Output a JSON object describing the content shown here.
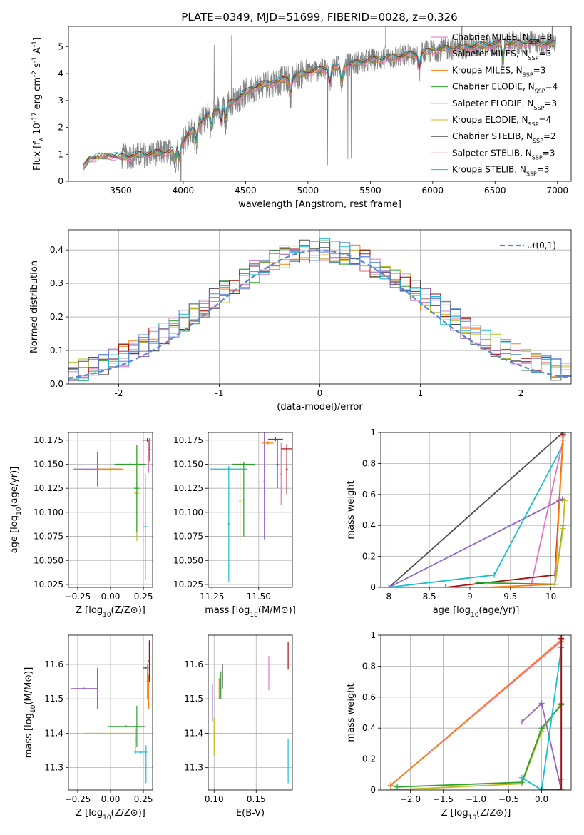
{
  "figure_title": "PLATE=0349, MJD=51699, FIBERID=0028, z=0.326",
  "model_colors": {
    "chabrier_miles": "#e377c2",
    "salpeter_miles": "#e377c2",
    "kroupa_miles": "#ff7f0e",
    "chabrier_elodie": "#2ca02c",
    "salpeter_elodie": "#9467bd",
    "kroupa_elodie": "#bcbd22",
    "chabrier_stelib": "#4d4d4d",
    "salpeter_stelib": "#a51010",
    "kroupa_stelib": "#17becf"
  },
  "chart_data": [
    {
      "id": "spectrum",
      "type": "line",
      "xlabel": "wavelength [Angstrom, rest frame]",
      "ylabel": "Flux [f_λ 10^-17 erg cm^-2 s^-1 A^-1]",
      "xlim": [
        3080,
        7110
      ],
      "ylim": [
        0,
        5.75
      ],
      "xticks": [
        3500,
        4000,
        4500,
        5000,
        5500,
        6000,
        6500,
        7000
      ],
      "yticks": [
        0,
        1,
        2,
        3,
        4,
        5
      ],
      "grid": false,
      "legend_position": "top-right",
      "data_color": "#808080",
      "continuum": {
        "x": [
          3200,
          3250,
          3400,
          3500,
          3600,
          3700,
          3800,
          3900,
          4000,
          4100,
          4200,
          4300,
          4400,
          4500,
          4600,
          4700,
          4800,
          4900,
          5000,
          5100,
          5200,
          5300,
          5400,
          5500,
          5600,
          5700,
          5800,
          5900,
          6000,
          6100,
          6200,
          6300,
          6400,
          6500,
          6600,
          6700,
          6800,
          6900,
          6990
        ],
        "y": [
          0.5,
          0.85,
          0.95,
          0.9,
          0.95,
          1.0,
          1.05,
          1.1,
          1.5,
          2.0,
          2.45,
          2.75,
          2.95,
          3.3,
          3.55,
          3.65,
          3.75,
          3.9,
          4.05,
          4.15,
          4.2,
          4.3,
          4.4,
          4.5,
          4.55,
          4.62,
          4.68,
          4.75,
          4.85,
          4.92,
          4.95,
          5.0,
          5.05,
          5.1,
          5.1,
          5.12,
          5.15,
          5.1,
          5.1
        ]
      },
      "absorption_lines": [
        3934,
        3969,
        4102,
        4227,
        4305,
        4341,
        4861,
        5175,
        5270,
        5893,
        6563
      ],
      "legend": [
        {
          "label": "Chabrier MILES, N",
          "sub": "SSP",
          "suffix": "=3",
          "color": "#e377c2"
        },
        {
          "label": "Salpeter MILES, N",
          "sub": "SSP",
          "suffix": "=3",
          "color": "#e377c2"
        },
        {
          "label": "Kroupa MILES, N",
          "sub": "SSP",
          "suffix": "=3",
          "color": "#ff7f0e"
        },
        {
          "label": "Chabrier ELODIE, N",
          "sub": "SSP",
          "suffix": "=4",
          "color": "#2ca02c"
        },
        {
          "label": "Salpeter ELODIE, N",
          "sub": "SSP",
          "suffix": "=3",
          "color": "#9467bd"
        },
        {
          "label": "Kroupa ELODIE, N",
          "sub": "SSP",
          "suffix": "=4",
          "color": "#bcbd22"
        },
        {
          "label": "Chabrier STELIB, N",
          "sub": "SSP",
          "suffix": "=2",
          "color": "#4d4d4d"
        },
        {
          "label": "Salpeter STELIB, N",
          "sub": "SSP",
          "suffix": "=3",
          "color": "#a51010"
        },
        {
          "label": "Kroupa STELIB, N",
          "sub": "SSP",
          "suffix": "=3",
          "color": "#17becf"
        }
      ]
    },
    {
      "id": "residuals",
      "type": "step-histogram",
      "xlabel": "(data-model)/error",
      "ylabel": "Normed distribution",
      "xlim": [
        -2.5,
        2.5
      ],
      "ylim": [
        0,
        0.46
      ],
      "xticks": [
        -2,
        -1,
        0,
        1,
        2
      ],
      "yticks": [
        0.0,
        0.1,
        0.2,
        0.3,
        0.4
      ],
      "grid": true,
      "legend_position": "top-right",
      "bin_width": 0.1,
      "gaussian": {
        "label": "𝒩(0,1)",
        "color": "#5b84d6",
        "style": "dashed"
      },
      "colors": [
        "#e377c2",
        "#ff7f0e",
        "#2ca02c",
        "#9467bd",
        "#bcbd22",
        "#4d4d4d",
        "#a51010",
        "#17becf",
        "#5b84d6"
      ]
    },
    {
      "id": "age-vs-Z",
      "type": "errorbar",
      "xlabel": "Z [log10(Z/Z⊙)]",
      "ylabel": "age  [log10(age/yr)]",
      "xlim": [
        -0.32,
        0.32
      ],
      "ylim": [
        10.022,
        10.183
      ],
      "xticks": [
        -0.25,
        0.0,
        0.25
      ],
      "xticklabels": [
        "−0.25",
        "0.00",
        "0.25"
      ],
      "yticks": [
        10.025,
        10.05,
        10.075,
        10.1,
        10.125,
        10.15,
        10.175
      ],
      "yticklabels": [
        "10.025",
        "10.050",
        "10.075",
        "10.100",
        "10.125",
        "10.150",
        "10.175"
      ],
      "grid": true,
      "points": [
        {
          "x": -0.1,
          "xerr": 0.18,
          "y": 10.145,
          "yerr": 0.018,
          "color": "#9467bd"
        },
        {
          "x": 0.0,
          "xerr": 0.1,
          "y": 10.145,
          "yerr": 0.002,
          "color": "#ff7f0e"
        },
        {
          "x": 0.0,
          "xerr": 0.2,
          "y": 10.144,
          "yerr": 0.002,
          "color": "#bcbd22"
        },
        {
          "x": 0.15,
          "xerr": 0.12,
          "y": 10.15,
          "yerr": 0.002,
          "color": "#2ca02c"
        },
        {
          "x": 0.2,
          "xerr": 0.02,
          "y": 10.12,
          "yerr": 0.05,
          "color": "#bcbd22"
        },
        {
          "x": 0.2,
          "xerr": 0.02,
          "y": 10.125,
          "yerr": 0.045,
          "color": "#2ca02c"
        },
        {
          "x": 0.265,
          "xerr": 0.02,
          "y": 10.085,
          "yerr": 0.055,
          "color": "#17becf"
        },
        {
          "x": 0.28,
          "xerr": 0.03,
          "y": 10.175,
          "yerr": 0.002,
          "color": "#4d4d4d"
        },
        {
          "x": 0.29,
          "xerr": 0.01,
          "y": 10.158,
          "yerr": 0.017,
          "color": "#e377c2"
        },
        {
          "x": 0.295,
          "xerr": 0.01,
          "y": 10.165,
          "yerr": 0.012,
          "color": "#ff7f0e"
        },
        {
          "x": 0.3,
          "xerr": 0.01,
          "y": 10.165,
          "yerr": 0.012,
          "color": "#a51010"
        }
      ]
    },
    {
      "id": "age-vs-mass",
      "type": "errorbar",
      "xlabel": "mass [log10(M/M⊙)]",
      "ylabel": "",
      "xlim": [
        11.23,
        11.68
      ],
      "ylim": [
        10.022,
        10.183
      ],
      "xticks": [
        11.25,
        11.5
      ],
      "xticklabels": [
        "11.25",
        "11.50"
      ],
      "yticks": [
        10.025,
        10.05,
        10.075,
        10.1,
        10.125,
        10.15,
        10.175
      ],
      "yticklabels": [
        "10.025",
        "10.050",
        "10.075",
        "10.100",
        "10.125",
        "10.150",
        "10.175"
      ],
      "grid": true,
      "points": [
        {
          "x": 11.34,
          "xerr": 0.1,
          "y": 10.145,
          "yerr": 0.002,
          "color": "#17becf"
        },
        {
          "x": 11.34,
          "xerr": 0.005,
          "y": 10.088,
          "yerr": 0.06,
          "color": "#17becf"
        },
        {
          "x": 11.4,
          "xerr": 0.005,
          "y": 10.112,
          "yerr": 0.042,
          "color": "#bcbd22"
        },
        {
          "x": 11.42,
          "xerr": 0.06,
          "y": 10.15,
          "yerr": 0.002,
          "color": "#2ca02c"
        },
        {
          "x": 11.42,
          "xerr": 0.005,
          "y": 10.113,
          "yerr": 0.038,
          "color": "#2ca02c"
        },
        {
          "x": 11.53,
          "xerr": 0.005,
          "y": 10.132,
          "yerr": 0.06,
          "color": "#9467bd"
        },
        {
          "x": 11.55,
          "xerr": 0.03,
          "y": 10.172,
          "yerr": 0.002,
          "color": "#ff7f0e"
        },
        {
          "x": 11.59,
          "xerr": 0.04,
          "y": 10.176,
          "yerr": 0.002,
          "color": "#4d4d4d"
        },
        {
          "x": 11.6,
          "xerr": 0.005,
          "y": 10.15,
          "yerr": 0.025,
          "color": "#4d4d4d"
        },
        {
          "x": 11.62,
          "xerr": 0.005,
          "y": 10.14,
          "yerr": 0.032,
          "color": "#e377c2"
        },
        {
          "x": 11.65,
          "xerr": 0.03,
          "y": 10.166,
          "yerr": 0.002,
          "color": "#a51010"
        },
        {
          "x": 11.65,
          "xerr": 0.005,
          "y": 10.145,
          "yerr": 0.026,
          "color": "#a51010"
        }
      ]
    },
    {
      "id": "weight-vs-age",
      "type": "line",
      "xlabel": "age  [log10(age/yr)]",
      "ylabel": "mass weight",
      "xlim": [
        7.9,
        10.25
      ],
      "ylim": [
        0,
        1.0
      ],
      "xticks": [
        8.0,
        8.5,
        9.0,
        9.5,
        10.0
      ],
      "yticks": [
        0.0,
        0.2,
        0.4,
        0.6,
        0.8,
        1.0
      ],
      "grid": true,
      "series": [
        {
          "color": "#4d4d4d",
          "x": [
            8.0,
            10.15
          ],
          "y": [
            0.0,
            1.0
          ]
        },
        {
          "color": "#9467bd",
          "x": [
            8.0,
            10.1,
            10.14
          ],
          "y": [
            0.0,
            0.56,
            0.57
          ]
        },
        {
          "color": "#17becf",
          "x": [
            8.0,
            9.3,
            10.15,
            10.15
          ],
          "y": [
            0.0,
            0.08,
            0.92,
            0.97
          ]
        },
        {
          "color": "#e377c2",
          "x": [
            9.75,
            10.15,
            10.15
          ],
          "y": [
            0.0,
            0.95,
            0.98
          ]
        },
        {
          "color": "#a51010",
          "x": [
            8.7,
            10.05,
            10.15,
            10.15
          ],
          "y": [
            0.0,
            0.08,
            0.97,
            0.99
          ]
        },
        {
          "color": "#ff7f0e",
          "x": [
            9.2,
            10.05,
            10.15
          ],
          "y": [
            0.0,
            0.02,
            0.97
          ]
        },
        {
          "color": "#2ca02c",
          "x": [
            9.1,
            10.05,
            10.15
          ],
          "y": [
            0.03,
            0.02,
            0.4
          ]
        },
        {
          "color": "#bcbd22",
          "x": [
            10.05,
            10.15,
            10.17
          ],
          "y": [
            0.02,
            0.38,
            0.56
          ]
        }
      ]
    },
    {
      "id": "mass-vs-Z",
      "type": "errorbar",
      "xlabel": "Z [log10(Z/Z⊙)]",
      "ylabel": "mass [log10(M/M⊙)]",
      "xlim": [
        -0.32,
        0.32
      ],
      "ylim": [
        11.235,
        11.685
      ],
      "xticks": [
        -0.25,
        0.0,
        0.25
      ],
      "xticklabels": [
        "−0.25",
        "0.00",
        "0.25"
      ],
      "yticks": [
        11.3,
        11.4,
        11.5,
        11.6
      ],
      "yticklabels": [
        "11.3",
        "11.4",
        "11.5",
        "11.6"
      ],
      "grid": true,
      "points": [
        {
          "x": -0.2,
          "xerr": 0.1,
          "y": 11.53,
          "yerr": 0.003,
          "color": "#9467bd"
        },
        {
          "x": -0.1,
          "xerr": 0.005,
          "y": 11.53,
          "yerr": 0.06,
          "color": "#9467bd"
        },
        {
          "x": 0.0,
          "xerr": 0.2,
          "y": 11.4,
          "yerr": 0.003,
          "color": "#bcbd22"
        },
        {
          "x": 0.12,
          "xerr": 0.14,
          "y": 11.42,
          "yerr": 0.003,
          "color": "#2ca02c"
        },
        {
          "x": 0.2,
          "xerr": 0.005,
          "y": 11.42,
          "yerr": 0.06,
          "color": "#2ca02c"
        },
        {
          "x": 0.19,
          "xerr": 0.005,
          "y": 11.38,
          "yerr": 0.04,
          "color": "#bcbd22"
        },
        {
          "x": 0.23,
          "xerr": 0.05,
          "y": 11.345,
          "yerr": 0.003,
          "color": "#17becf"
        },
        {
          "x": 0.27,
          "xerr": 0.005,
          "y": 11.31,
          "yerr": 0.055,
          "color": "#17becf"
        },
        {
          "x": 0.27,
          "xerr": 0.02,
          "y": 11.59,
          "yerr": 0.003,
          "color": "#4d4d4d"
        },
        {
          "x": 0.28,
          "xerr": 0.01,
          "y": 11.55,
          "yerr": 0.05,
          "color": "#e377c2"
        },
        {
          "x": 0.29,
          "xerr": 0.01,
          "y": 11.52,
          "yerr": 0.05,
          "color": "#ff7f0e"
        },
        {
          "x": 0.295,
          "xerr": 0.008,
          "y": 11.61,
          "yerr": 0.06,
          "color": "#a51010"
        }
      ]
    },
    {
      "id": "mass-vs-ebv",
      "type": "errorbar",
      "xlabel": "E(B-V)",
      "ylabel": "",
      "xlim": [
        0.093,
        0.193
      ],
      "ylim": [
        11.235,
        11.685
      ],
      "xticks": [
        0.1,
        0.15
      ],
      "xticklabels": [
        "0.10",
        "0.15"
      ],
      "yticks": [
        11.3,
        11.4,
        11.5,
        11.6
      ],
      "yticklabels": [
        "11.3",
        "11.4",
        "11.5",
        "11.6"
      ],
      "grid": true,
      "points": [
        {
          "x": 0.098,
          "xerr": 0.0005,
          "y": 11.49,
          "yerr": 0.055,
          "color": "#9467bd"
        },
        {
          "x": 0.1,
          "xerr": 0.0005,
          "y": 11.39,
          "yerr": 0.055,
          "color": "#bcbd22"
        },
        {
          "x": 0.106,
          "xerr": 0.0005,
          "y": 11.53,
          "yerr": 0.03,
          "color": "#ff7f0e"
        },
        {
          "x": 0.108,
          "xerr": 0.0005,
          "y": 11.54,
          "yerr": 0.04,
          "color": "#2ca02c"
        },
        {
          "x": 0.11,
          "xerr": 0.0005,
          "y": 11.565,
          "yerr": 0.035,
          "color": "#4d4d4d"
        },
        {
          "x": 0.165,
          "xerr": 0.0005,
          "y": 11.575,
          "yerr": 0.05,
          "color": "#e377c2"
        },
        {
          "x": 0.188,
          "xerr": 0.0005,
          "y": 11.625,
          "yerr": 0.04,
          "color": "#a51010"
        },
        {
          "x": 0.188,
          "xerr": 0.0005,
          "y": 11.32,
          "yerr": 0.065,
          "color": "#17becf"
        }
      ]
    },
    {
      "id": "weight-vs-Z",
      "type": "line",
      "xlabel": "Z [log10(Z/Z⊙)]",
      "ylabel": "mass weight",
      "xlim": [
        -2.45,
        0.45
      ],
      "ylim": [
        0,
        1.0
      ],
      "xticks": [
        -2.0,
        -1.5,
        -1.0,
        -0.5,
        0.0
      ],
      "xticklabels": [
        "−2.0",
        "−1.5",
        "−1.0",
        "−0.5",
        "0.0"
      ],
      "yticks": [
        0.0,
        0.2,
        0.4,
        0.6,
        0.8,
        1.0
      ],
      "grid": true,
      "series": [
        {
          "color": "#e377c2",
          "x": [
            -2.3,
            0.3
          ],
          "y": [
            0.03,
            0.96
          ]
        },
        {
          "color": "#ff7f0e",
          "x": [
            -2.3,
            0.3
          ],
          "y": [
            0.03,
            0.97
          ]
        },
        {
          "color": "#bcbd22",
          "x": [
            -2.3,
            -0.3,
            0.0,
            0.3
          ],
          "y": [
            0.0,
            0.04,
            0.38,
            0.56
          ]
        },
        {
          "color": "#2ca02c",
          "x": [
            -2.2,
            -0.3,
            0.0,
            0.3
          ],
          "y": [
            0.02,
            0.05,
            0.4,
            0.55
          ]
        },
        {
          "color": "#9467bd",
          "x": [
            -0.3,
            0.0,
            0.3
          ],
          "y": [
            0.44,
            0.56,
            0.0
          ]
        },
        {
          "color": "#17becf",
          "x": [
            -0.3,
            0.0,
            0.3
          ],
          "y": [
            0.08,
            0.0,
            0.92
          ]
        },
        {
          "color": "#4d4d4d",
          "x": [
            0.0,
            0.3,
            0.3
          ],
          "y": [
            0.0,
            0.0,
            1.0
          ]
        },
        {
          "color": "#a51010",
          "x": [
            0.3,
            0.3,
            0.3
          ],
          "y": [
            0.0,
            0.07,
            0.98
          ]
        }
      ]
    }
  ]
}
